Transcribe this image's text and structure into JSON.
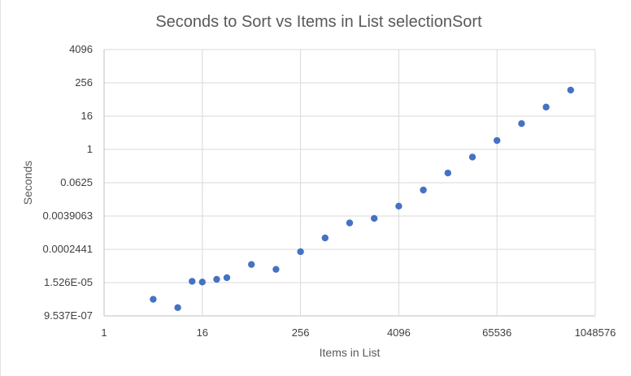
{
  "chart_data": {
    "type": "scatter",
    "title": "Seconds to Sort vs Items in List  selectionSort",
    "xlabel": "Items in List",
    "ylabel": "Seconds",
    "x_scale": "log2",
    "y_scale": "log2",
    "xlim": [
      1,
      1048576
    ],
    "ylim": [
      9.537e-07,
      4096
    ],
    "x_ticks": [
      {
        "value": 1,
        "label": "1"
      },
      {
        "value": 16,
        "label": "16"
      },
      {
        "value": 256,
        "label": "256"
      },
      {
        "value": 4096,
        "label": "4096"
      },
      {
        "value": 65536,
        "label": "65536"
      },
      {
        "value": 1048576,
        "label": "1048576"
      }
    ],
    "y_ticks": [
      {
        "value": 9.537e-07,
        "label": "9.537E-07"
      },
      {
        "value": 1.526e-05,
        "label": "1.526E-05"
      },
      {
        "value": 0.0002441,
        "label": "0.0002441"
      },
      {
        "value": 0.0039063,
        "label": "0.0039063"
      },
      {
        "value": 0.0625,
        "label": "0.0625"
      },
      {
        "value": 1,
        "label": "1"
      },
      {
        "value": 16,
        "label": "16"
      },
      {
        "value": 256,
        "label": "256"
      },
      {
        "value": 4096,
        "label": "4096"
      }
    ],
    "grid": true,
    "legend": "none",
    "series": [
      {
        "color": "#4472c4",
        "points": [
          {
            "x": 4,
            "y": 3.8e-06
          },
          {
            "x": 8,
            "y": 1.9e-06
          },
          {
            "x": 12,
            "y": 1.7e-05
          },
          {
            "x": 16,
            "y": 1.6e-05
          },
          {
            "x": 24,
            "y": 2e-05
          },
          {
            "x": 32,
            "y": 2.3e-05
          },
          {
            "x": 64,
            "y": 6.9e-05
          },
          {
            "x": 128,
            "y": 4.6e-05
          },
          {
            "x": 256,
            "y": 0.0002
          },
          {
            "x": 512,
            "y": 0.00063
          },
          {
            "x": 1024,
            "y": 0.0022
          },
          {
            "x": 2048,
            "y": 0.0032
          },
          {
            "x": 4096,
            "y": 0.0089
          },
          {
            "x": 8192,
            "y": 0.034
          },
          {
            "x": 16384,
            "y": 0.14
          },
          {
            "x": 32768,
            "y": 0.53
          },
          {
            "x": 65536,
            "y": 2.1
          },
          {
            "x": 131072,
            "y": 8.6
          },
          {
            "x": 262144,
            "y": 34
          },
          {
            "x": 524288,
            "y": 140
          }
        ]
      }
    ]
  }
}
